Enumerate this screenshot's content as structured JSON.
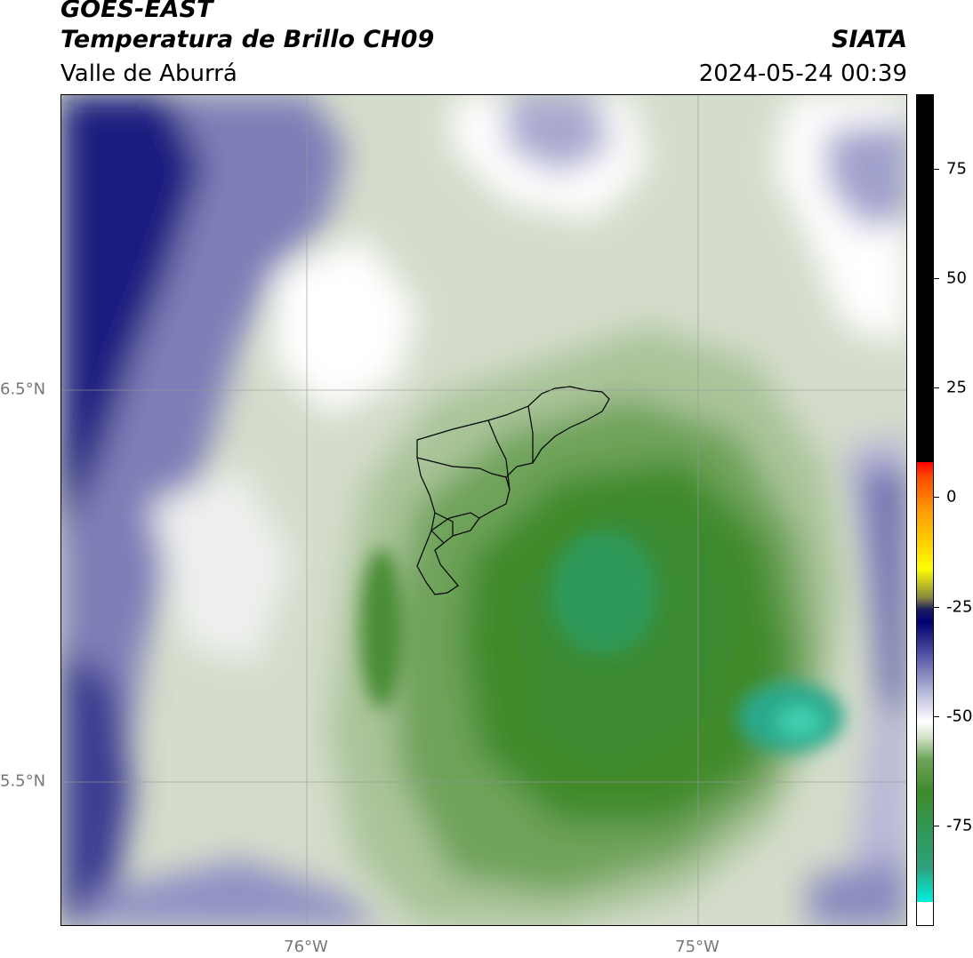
{
  "header": {
    "satellite": "GOES-EAST",
    "product": "Temperatura de Brillo CH09",
    "region": "Valle de Aburrá",
    "source": "SIATA",
    "timestamp": "2024-05-24 00:39"
  },
  "map": {
    "lat_labels": [
      "6.5°N",
      "5.5°N"
    ],
    "lon_labels": [
      "76°W",
      "75°W"
    ],
    "gridlines": true
  },
  "colorbar": {
    "ticks": [
      "75",
      "50",
      "25",
      "0",
      "-25",
      "-50",
      "-75"
    ],
    "colors": {
      "black": "#000000",
      "red": "#ff0000",
      "orange": "#ff9a00",
      "yellow": "#ffff00",
      "navy": "#020272",
      "lavender": "#b9b9dc",
      "white": "#ffffff",
      "green": "#3f8a2a",
      "teal": "#2fa07a",
      "cyan": "#00ecd8"
    }
  }
}
